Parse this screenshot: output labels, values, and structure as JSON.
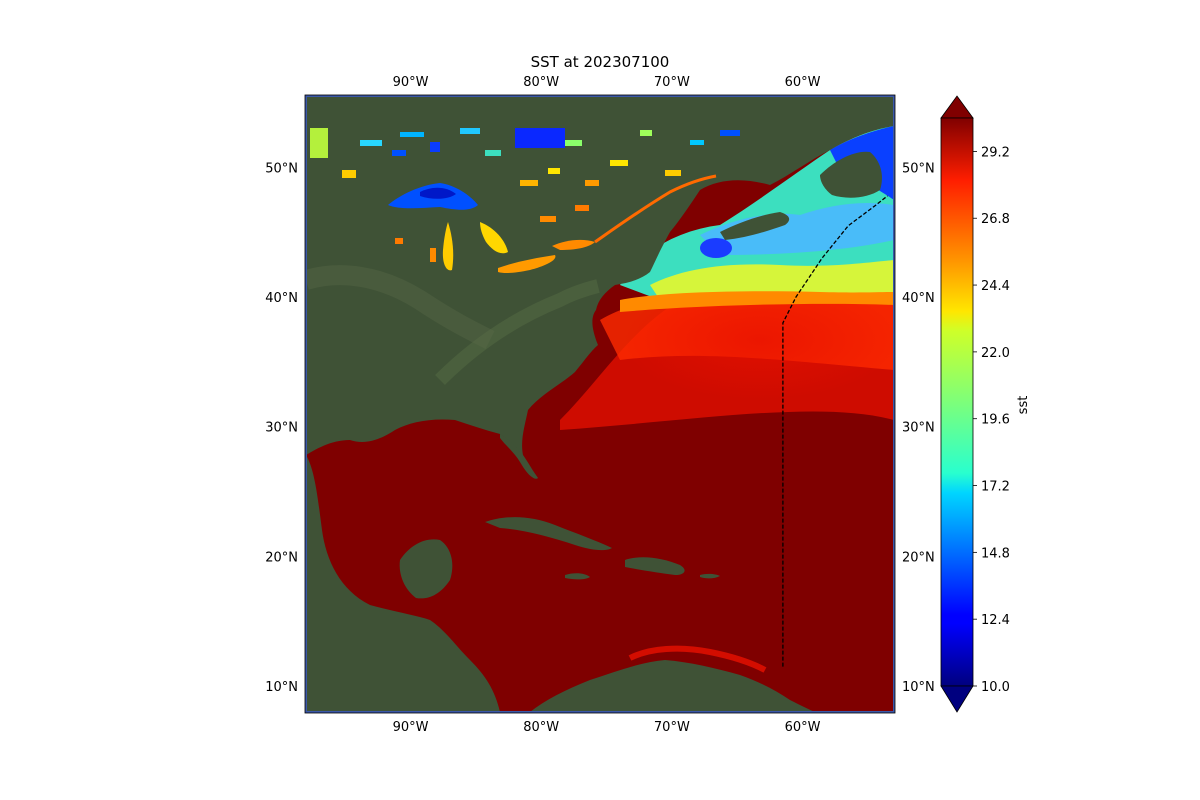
{
  "figure": {
    "title": "SST at 202307100"
  },
  "map": {
    "extent_lon": [
      -98.0,
      -53.0
    ],
    "extent_lat": [
      8.0,
      55.5
    ],
    "lon_ticks": [
      {
        "value": -90,
        "label": "90°W"
      },
      {
        "value": -80,
        "label": "80°W"
      },
      {
        "value": -70,
        "label": "70°W"
      },
      {
        "value": -60,
        "label": "60°W"
      }
    ],
    "lat_ticks": [
      {
        "value": 50,
        "label": "50°N"
      },
      {
        "value": 40,
        "label": "40°N"
      },
      {
        "value": 30,
        "label": "30°N"
      },
      {
        "value": 20,
        "label": "20°N"
      },
      {
        "value": 10,
        "label": "10°N"
      }
    ],
    "track": [
      [
        -61.5,
        11.5
      ],
      [
        -61.5,
        20.0
      ],
      [
        -61.5,
        30.0
      ],
      [
        -61.5,
        38.0
      ],
      [
        -60.5,
        40.0
      ],
      [
        -58.5,
        43.0
      ],
      [
        -56.5,
        45.5
      ],
      [
        -54.5,
        47.0
      ],
      [
        -53.5,
        47.8
      ]
    ],
    "colors": {
      "land": "#3f5236",
      "ocean_warm": "#7f0000",
      "frame_border": "#3b58a8",
      "track": "#000000"
    }
  },
  "colorbar": {
    "label": "sst",
    "vmin": 10.0,
    "vmax": 30.4,
    "colormap": "jet",
    "extend": "both",
    "ticks": [
      "10.0",
      "12.4",
      "14.8",
      "17.2",
      "19.6",
      "22.0",
      "24.4",
      "26.8",
      "29.2"
    ]
  }
}
